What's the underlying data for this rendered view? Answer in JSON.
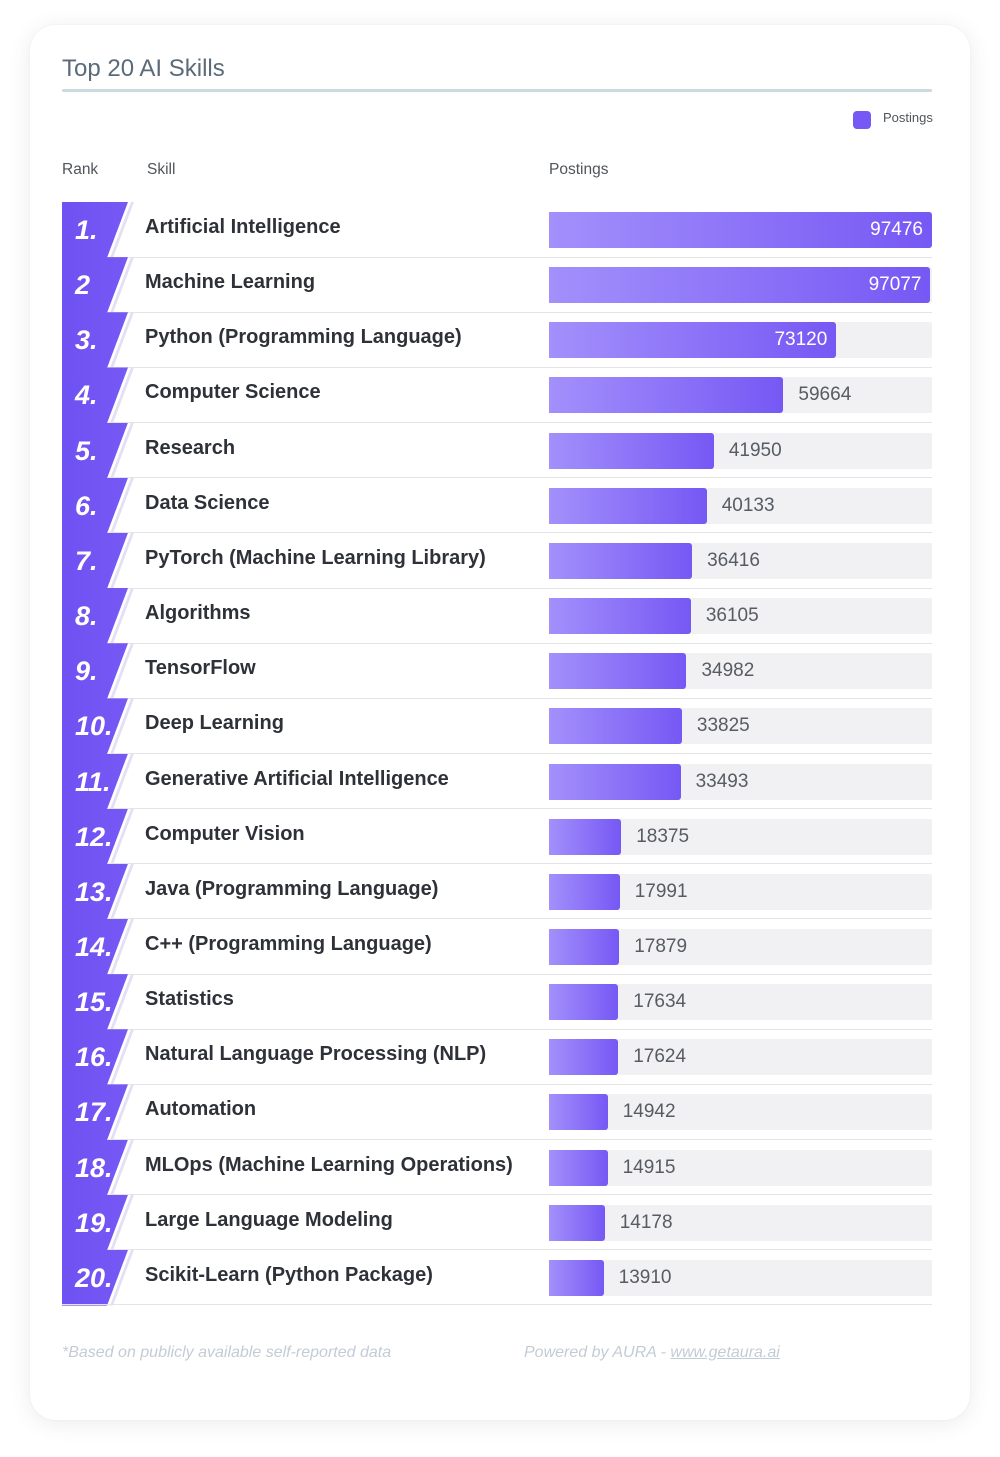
{
  "colors": {
    "accent": "#7658f4",
    "accent_light": "#a390fb",
    "track": "#f1f1f3",
    "title": "#5b6b79",
    "footer_text": "#c3ccd5"
  },
  "headers": {
    "rank": "Rank",
    "skill": "Skill",
    "postings": "Postings"
  },
  "footer": {
    "note": "*Based on publicly available self-reported data",
    "powered_by": "Powered by AURA - ",
    "link": "www.getaura.ai"
  },
  "chart_data": {
    "type": "bar",
    "orientation": "horizontal",
    "title": "Top 20 AI Skills",
    "rank_labels": [
      "1.",
      "2",
      "3.",
      "4.",
      "5.",
      "6.",
      "7.",
      "8.",
      "9.",
      "10.",
      "11.",
      "12.",
      "13.",
      "14.",
      "15.",
      "16.",
      "17.",
      "18.",
      "19.",
      "20."
    ],
    "categories": [
      "Artificial Intelligence",
      "Machine Learning",
      "Python (Programming Language)",
      "Computer Science",
      "Research",
      "Data Science",
      "PyTorch (Machine Learning Library)",
      "Algorithms",
      "TensorFlow",
      "Deep Learning",
      "Generative Artificial Intelligence",
      "Computer Vision",
      "Java (Programming Language)",
      "C++ (Programming Language)",
      "Statistics",
      "Natural Language Processing (NLP)",
      "Automation",
      "MLOps (Machine Learning Operations)",
      "Large Language Modeling",
      "Scikit-Learn (Python Package)"
    ],
    "series": [
      {
        "name": "Postings",
        "values": [
          97476,
          97077,
          73120,
          59664,
          41950,
          40133,
          36416,
          36105,
          34982,
          33825,
          33493,
          18375,
          17991,
          17879,
          17634,
          17624,
          14942,
          14915,
          14178,
          13910
        ]
      }
    ],
    "xlim": [
      0,
      97476
    ],
    "legend_position": "top-right",
    "grid": false,
    "data_labels": true
  }
}
